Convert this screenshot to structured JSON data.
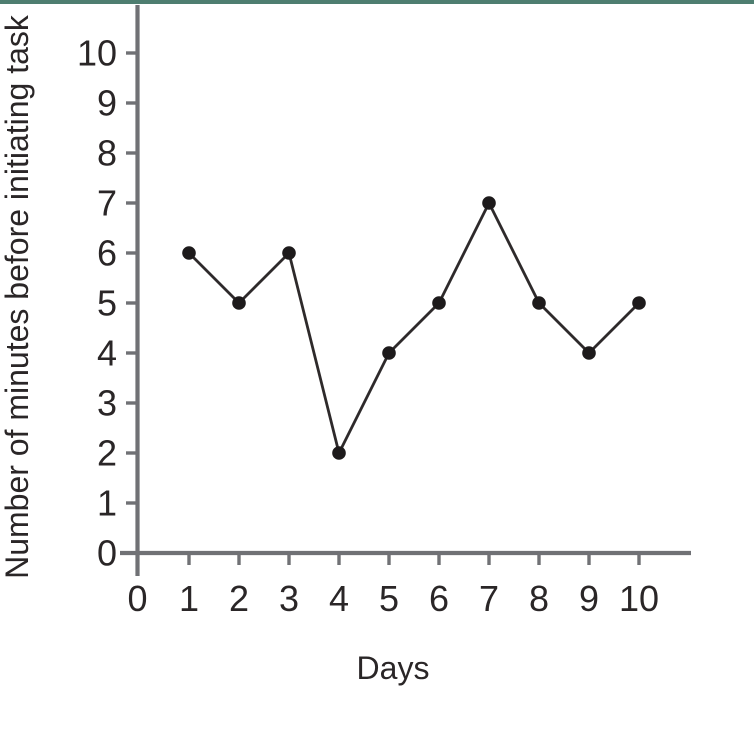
{
  "page": {
    "background_color": "#ffffff",
    "accent_bar_color": "#4e7e70"
  },
  "chart_data": {
    "type": "line",
    "title": "",
    "xlabel": "Days",
    "ylabel": "Number of minutes before initiating task",
    "x": [
      1,
      2,
      3,
      4,
      5,
      6,
      7,
      8,
      9,
      10
    ],
    "values": [
      6,
      5,
      6,
      2,
      4,
      5,
      7,
      5,
      4,
      5
    ],
    "x_ticks": [
      0,
      1,
      2,
      3,
      4,
      5,
      6,
      7,
      8,
      9,
      10
    ],
    "y_ticks": [
      0,
      1,
      2,
      3,
      4,
      5,
      6,
      7,
      8,
      9,
      10
    ],
    "xlim": [
      0,
      11
    ],
    "ylim": [
      0,
      11
    ],
    "grid": false,
    "legend": false,
    "marker": "filled-circle",
    "line_color": "#2e2a2b",
    "marker_color": "#1d1a1b",
    "axis_color": "#707175",
    "text_color": "#2a2627"
  }
}
